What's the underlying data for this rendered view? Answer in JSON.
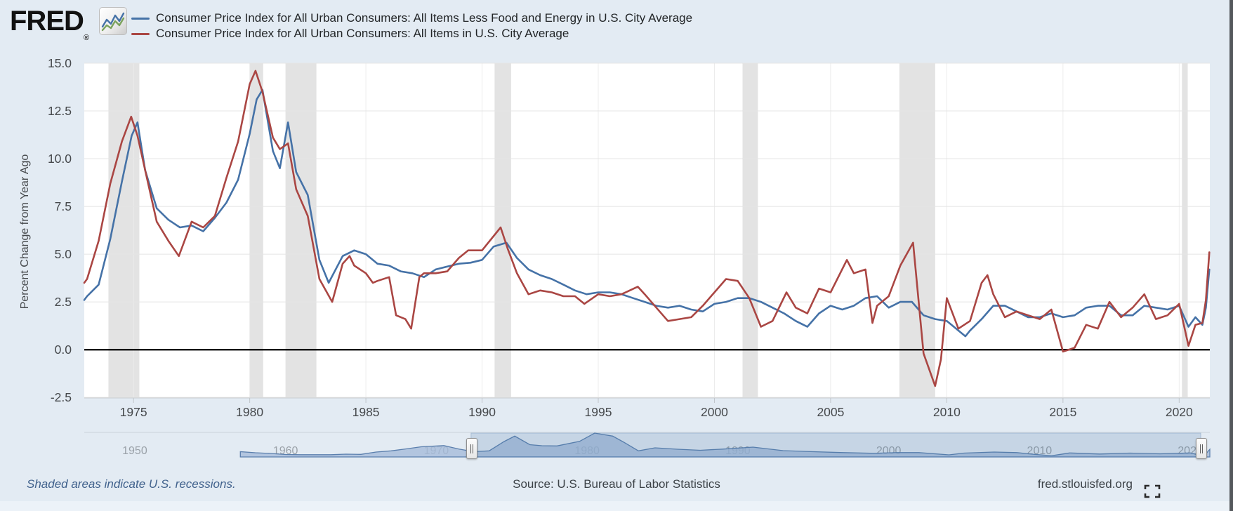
{
  "header": {
    "logo_text": "FRED",
    "logo_registered": "®",
    "legend": [
      {
        "label": "Consumer Price Index for All Urban Consumers: All Items Less Food and Energy in U.S. City Average",
        "color": "#4572a7"
      },
      {
        "label": "Consumer Price Index for All Urban Consumers: All Items in U.S. City Average",
        "color": "#aa4643"
      }
    ]
  },
  "y_axis": {
    "title": "Percent Change from Year Ago",
    "tick_labels": [
      "15.0",
      "12.5",
      "10.0",
      "7.5",
      "5.0",
      "2.5",
      "0.0",
      "-2.5"
    ],
    "tick_values": [
      15,
      12.5,
      10,
      7.5,
      5,
      2.5,
      0,
      -2.5
    ]
  },
  "x_axis": {
    "tick_labels": [
      "1975",
      "1980",
      "1985",
      "1990",
      "1995",
      "2000",
      "2005",
      "2010",
      "2015",
      "2020"
    ],
    "tick_values": [
      1975,
      1980,
      1985,
      1990,
      1995,
      2000,
      2005,
      2010,
      2015,
      2020
    ]
  },
  "chart_data": {
    "type": "line",
    "title": "",
    "xlabel": "",
    "ylabel": "Percent Change from Year Ago",
    "xlim": [
      1972.88,
      2021.32
    ],
    "ylim": [
      -2.53,
      15.0
    ],
    "grid": true,
    "zero_line": 0,
    "legend_position": "top-left",
    "recessions": [
      [
        1973.92,
        1975.25
      ],
      [
        1980.0,
        1980.58
      ],
      [
        1981.54,
        1982.87
      ],
      [
        1990.54,
        1991.25
      ],
      [
        2001.21,
        2001.87
      ],
      [
        2007.96,
        2009.5
      ],
      [
        2020.12,
        2020.37
      ]
    ],
    "series": [
      {
        "name": "Consumer Price Index for All Urban Consumers: All Items Less Food and Energy in U.S. City Average",
        "color": "#4572a7",
        "points": [
          [
            1972.88,
            2.6
          ],
          [
            1973.0,
            2.8
          ],
          [
            1973.5,
            3.4
          ],
          [
            1974.0,
            5.8
          ],
          [
            1974.5,
            8.8
          ],
          [
            1974.92,
            11.2
          ],
          [
            1975.17,
            11.9
          ],
          [
            1975.5,
            9.4
          ],
          [
            1976.0,
            7.4
          ],
          [
            1976.5,
            6.8
          ],
          [
            1977.0,
            6.4
          ],
          [
            1977.5,
            6.5
          ],
          [
            1978.0,
            6.2
          ],
          [
            1978.5,
            6.9
          ],
          [
            1979.0,
            7.7
          ],
          [
            1979.5,
            8.9
          ],
          [
            1980.0,
            11.3
          ],
          [
            1980.3,
            13.1
          ],
          [
            1980.55,
            13.6
          ],
          [
            1981.0,
            10.4
          ],
          [
            1981.3,
            9.5
          ],
          [
            1981.65,
            11.9
          ],
          [
            1982.0,
            9.3
          ],
          [
            1982.5,
            8.1
          ],
          [
            1983.0,
            4.7
          ],
          [
            1983.4,
            3.5
          ],
          [
            1984.0,
            4.9
          ],
          [
            1984.5,
            5.2
          ],
          [
            1985.0,
            5.0
          ],
          [
            1985.5,
            4.5
          ],
          [
            1986.0,
            4.4
          ],
          [
            1986.5,
            4.1
          ],
          [
            1987.0,
            4.0
          ],
          [
            1987.5,
            3.8
          ],
          [
            1988.0,
            4.2
          ],
          [
            1988.5,
            4.35
          ],
          [
            1989.0,
            4.5
          ],
          [
            1989.5,
            4.55
          ],
          [
            1990.0,
            4.7
          ],
          [
            1990.5,
            5.4
          ],
          [
            1991.05,
            5.6
          ],
          [
            1991.5,
            4.8
          ],
          [
            1992.0,
            4.2
          ],
          [
            1992.5,
            3.9
          ],
          [
            1993.0,
            3.7
          ],
          [
            1993.5,
            3.4
          ],
          [
            1994.0,
            3.1
          ],
          [
            1994.5,
            2.9
          ],
          [
            1995.0,
            3.0
          ],
          [
            1995.5,
            3.0
          ],
          [
            1996.0,
            2.9
          ],
          [
            1996.5,
            2.7
          ],
          [
            1997.0,
            2.5
          ],
          [
            1997.5,
            2.3
          ],
          [
            1998.0,
            2.2
          ],
          [
            1998.5,
            2.3
          ],
          [
            1999.0,
            2.1
          ],
          [
            1999.5,
            2.0
          ],
          [
            2000.0,
            2.4
          ],
          [
            2000.5,
            2.5
          ],
          [
            2001.0,
            2.7
          ],
          [
            2001.5,
            2.7
          ],
          [
            2002.0,
            2.5
          ],
          [
            2002.5,
            2.2
          ],
          [
            2003.0,
            1.9
          ],
          [
            2003.5,
            1.5
          ],
          [
            2004.0,
            1.2
          ],
          [
            2004.5,
            1.9
          ],
          [
            2005.0,
            2.3
          ],
          [
            2005.5,
            2.1
          ],
          [
            2006.0,
            2.3
          ],
          [
            2006.5,
            2.7
          ],
          [
            2007.0,
            2.8
          ],
          [
            2007.5,
            2.2
          ],
          [
            2008.0,
            2.5
          ],
          [
            2008.5,
            2.5
          ],
          [
            2009.0,
            1.8
          ],
          [
            2009.5,
            1.6
          ],
          [
            2010.0,
            1.5
          ],
          [
            2010.8,
            0.7
          ],
          [
            2011.0,
            1.0
          ],
          [
            2011.5,
            1.6
          ],
          [
            2012.0,
            2.3
          ],
          [
            2012.5,
            2.3
          ],
          [
            2013.0,
            2.0
          ],
          [
            2013.5,
            1.7
          ],
          [
            2014.0,
            1.7
          ],
          [
            2014.5,
            1.9
          ],
          [
            2015.0,
            1.7
          ],
          [
            2015.5,
            1.8
          ],
          [
            2016.0,
            2.2
          ],
          [
            2016.5,
            2.3
          ],
          [
            2017.0,
            2.3
          ],
          [
            2017.5,
            1.8
          ],
          [
            2018.0,
            1.8
          ],
          [
            2018.5,
            2.3
          ],
          [
            2019.0,
            2.2
          ],
          [
            2019.5,
            2.1
          ],
          [
            2020.0,
            2.3
          ],
          [
            2020.4,
            1.2
          ],
          [
            2020.7,
            1.7
          ],
          [
            2021.0,
            1.3
          ],
          [
            2021.15,
            2.2
          ],
          [
            2021.3,
            4.2
          ]
        ]
      },
      {
        "name": "Consumer Price Index for All Urban Consumers: All Items in U.S. City Average",
        "color": "#aa4643",
        "points": [
          [
            1972.88,
            3.5
          ],
          [
            1973.0,
            3.7
          ],
          [
            1973.5,
            5.7
          ],
          [
            1974.0,
            8.7
          ],
          [
            1974.5,
            10.9
          ],
          [
            1974.9,
            12.2
          ],
          [
            1975.17,
            11.2
          ],
          [
            1975.5,
            9.4
          ],
          [
            1976.0,
            6.7
          ],
          [
            1976.5,
            5.7
          ],
          [
            1976.95,
            4.9
          ],
          [
            1977.5,
            6.7
          ],
          [
            1978.0,
            6.4
          ],
          [
            1978.5,
            7.0
          ],
          [
            1979.0,
            9.0
          ],
          [
            1979.5,
            10.9
          ],
          [
            1980.0,
            13.9
          ],
          [
            1980.25,
            14.6
          ],
          [
            1980.55,
            13.5
          ],
          [
            1981.0,
            11.1
          ],
          [
            1981.3,
            10.5
          ],
          [
            1981.65,
            10.8
          ],
          [
            1982.0,
            8.4
          ],
          [
            1982.5,
            7.0
          ],
          [
            1983.0,
            3.7
          ],
          [
            1983.55,
            2.5
          ],
          [
            1984.0,
            4.5
          ],
          [
            1984.3,
            4.9
          ],
          [
            1984.5,
            4.4
          ],
          [
            1985.0,
            4.0
          ],
          [
            1985.3,
            3.5
          ],
          [
            1985.5,
            3.6
          ],
          [
            1986.0,
            3.8
          ],
          [
            1986.3,
            1.8
          ],
          [
            1986.7,
            1.6
          ],
          [
            1986.95,
            1.1
          ],
          [
            1987.3,
            3.8
          ],
          [
            1987.5,
            4.0
          ],
          [
            1988.0,
            4.0
          ],
          [
            1988.5,
            4.1
          ],
          [
            1989.0,
            4.8
          ],
          [
            1989.4,
            5.2
          ],
          [
            1990.0,
            5.2
          ],
          [
            1990.8,
            6.4
          ],
          [
            1991.1,
            5.3
          ],
          [
            1991.5,
            4.0
          ],
          [
            1992.0,
            2.9
          ],
          [
            1992.5,
            3.1
          ],
          [
            1993.0,
            3.0
          ],
          [
            1993.5,
            2.8
          ],
          [
            1994.0,
            2.8
          ],
          [
            1994.4,
            2.4
          ],
          [
            1995.0,
            2.9
          ],
          [
            1995.5,
            2.8
          ],
          [
            1996.0,
            2.9
          ],
          [
            1996.7,
            3.3
          ],
          [
            1997.0,
            2.9
          ],
          [
            1997.5,
            2.2
          ],
          [
            1998.0,
            1.5
          ],
          [
            1998.5,
            1.6
          ],
          [
            1999.0,
            1.7
          ],
          [
            1999.5,
            2.3
          ],
          [
            2000.0,
            3.0
          ],
          [
            2000.5,
            3.7
          ],
          [
            2001.0,
            3.6
          ],
          [
            2001.5,
            2.7
          ],
          [
            2002.0,
            1.2
          ],
          [
            2002.5,
            1.5
          ],
          [
            2003.1,
            3.0
          ],
          [
            2003.5,
            2.2
          ],
          [
            2004.0,
            1.9
          ],
          [
            2004.5,
            3.2
          ],
          [
            2005.0,
            3.0
          ],
          [
            2005.7,
            4.7
          ],
          [
            2006.0,
            4.0
          ],
          [
            2006.5,
            4.2
          ],
          [
            2006.8,
            1.4
          ],
          [
            2007.0,
            2.3
          ],
          [
            2007.5,
            2.8
          ],
          [
            2008.0,
            4.4
          ],
          [
            2008.55,
            5.6
          ],
          [
            2009.0,
            -0.2
          ],
          [
            2009.5,
            -1.9
          ],
          [
            2009.75,
            -0.5
          ],
          [
            2010.0,
            2.7
          ],
          [
            2010.5,
            1.1
          ],
          [
            2011.0,
            1.5
          ],
          [
            2011.5,
            3.5
          ],
          [
            2011.75,
            3.9
          ],
          [
            2012.0,
            2.9
          ],
          [
            2012.5,
            1.7
          ],
          [
            2013.0,
            2.0
          ],
          [
            2013.5,
            1.8
          ],
          [
            2014.0,
            1.6
          ],
          [
            2014.5,
            2.1
          ],
          [
            2015.0,
            -0.1
          ],
          [
            2015.5,
            0.1
          ],
          [
            2016.0,
            1.3
          ],
          [
            2016.5,
            1.1
          ],
          [
            2017.0,
            2.5
          ],
          [
            2017.5,
            1.7
          ],
          [
            2018.0,
            2.2
          ],
          [
            2018.5,
            2.9
          ],
          [
            2019.0,
            1.6
          ],
          [
            2019.5,
            1.8
          ],
          [
            2020.0,
            2.4
          ],
          [
            2020.4,
            0.2
          ],
          [
            2020.7,
            1.3
          ],
          [
            2021.0,
            1.4
          ],
          [
            2021.15,
            2.6
          ],
          [
            2021.3,
            5.1
          ]
        ]
      }
    ],
    "navigator": {
      "xlim": [
        1946.65,
        2021.3
      ],
      "ylim": [
        0,
        14
      ],
      "decades": [
        1950,
        1960,
        1970,
        1980,
        1990,
        2000,
        2010,
        2020
      ],
      "window": [
        1972.3,
        2020.7
      ],
      "series_points": [
        [
          1957,
          3.0
        ],
        [
          1958,
          2.4
        ],
        [
          1959,
          2.0
        ],
        [
          1960,
          1.4
        ],
        [
          1961,
          1.3
        ],
        [
          1962,
          1.3
        ],
        [
          1963,
          1.3
        ],
        [
          1964,
          1.6
        ],
        [
          1965,
          1.5
        ],
        [
          1966,
          2.8
        ],
        [
          1967,
          3.5
        ],
        [
          1968,
          4.6
        ],
        [
          1969,
          5.8
        ],
        [
          1970.5,
          6.5
        ],
        [
          1971.5,
          4.5
        ],
        [
          1972.5,
          3.0
        ],
        [
          1973.5,
          3.5
        ],
        [
          1974.5,
          8.8
        ],
        [
          1975.2,
          11.9
        ],
        [
          1976.2,
          7.0
        ],
        [
          1977,
          6.4
        ],
        [
          1978,
          6.3
        ],
        [
          1979.5,
          8.9
        ],
        [
          1980.5,
          13.6
        ],
        [
          1981.7,
          11.9
        ],
        [
          1982.5,
          8.1
        ],
        [
          1983.4,
          3.5
        ],
        [
          1984.5,
          5.2
        ],
        [
          1986,
          4.4
        ],
        [
          1987.5,
          3.8
        ],
        [
          1989,
          4.5
        ],
        [
          1991,
          5.6
        ],
        [
          1993,
          3.6
        ],
        [
          1995,
          3.0
        ],
        [
          1997,
          2.5
        ],
        [
          1999,
          2.1
        ],
        [
          2000.5,
          2.5
        ],
        [
          2002,
          2.5
        ],
        [
          2004,
          1.2
        ],
        [
          2005,
          2.2
        ],
        [
          2007,
          2.8
        ],
        [
          2008.5,
          2.5
        ],
        [
          2009.5,
          1.6
        ],
        [
          2010.8,
          0.7
        ],
        [
          2012,
          2.3
        ],
        [
          2014,
          1.7
        ],
        [
          2016,
          2.2
        ],
        [
          2018,
          1.8
        ],
        [
          2020,
          2.3
        ],
        [
          2020.5,
          1.3
        ],
        [
          2021,
          1.4
        ],
        [
          2021.3,
          4.4
        ]
      ]
    }
  },
  "footer": {
    "note": "Shaded areas indicate U.S. recessions.",
    "source": "Source: U.S. Bureau of Labor Statistics",
    "link": "fred.stlouisfed.org"
  }
}
